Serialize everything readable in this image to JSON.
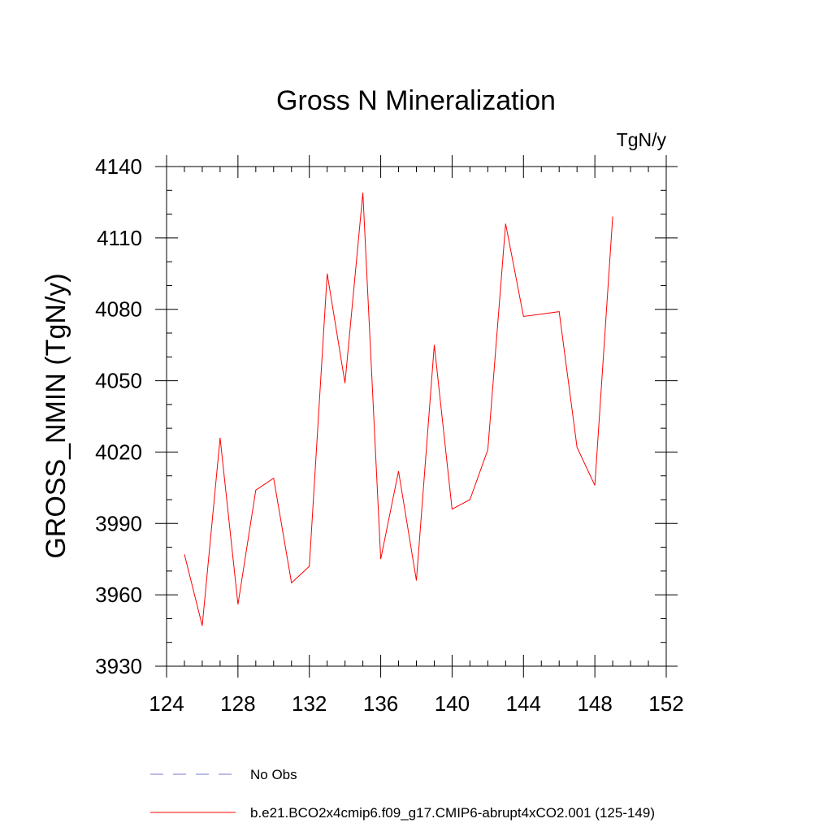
{
  "chart_data": {
    "type": "line",
    "title": "Gross N Mineralization",
    "units_label": "TgN/y",
    "xlabel": "",
    "ylabel": "GROSS_NMIN  (TgN/y)",
    "xlim": [
      124,
      152
    ],
    "ylim": [
      3930,
      4140
    ],
    "x_ticks": [
      124,
      128,
      132,
      136,
      140,
      144,
      148,
      152
    ],
    "y_ticks": [
      3930,
      3960,
      3990,
      4020,
      4050,
      4080,
      4110,
      4140
    ],
    "x_minor_step": 1,
    "y_minor_step": 10,
    "grid": false,
    "legend_position": "bottom",
    "series": [
      {
        "name": "b.e21.BCO2x4cmip6.f09_g17.CMIP6-abrupt4xCO2.001 (125-149)",
        "color": "#ff0000",
        "x": [
          125,
          126,
          127,
          128,
          129,
          130,
          131,
          132,
          133,
          134,
          135,
          136,
          137,
          138,
          139,
          140,
          141,
          142,
          143,
          144,
          145,
          146,
          147,
          148,
          149
        ],
        "values": [
          3977,
          3947,
          4026,
          3956,
          4004,
          4009,
          3965,
          3972,
          4095,
          4049,
          4129,
          3975,
          4012,
          3966,
          4065,
          3996,
          4000,
          4021,
          4116,
          4077,
          4078,
          4079,
          4022,
          4006,
          4119
        ]
      }
    ],
    "legend": [
      {
        "label": "No Obs",
        "color": "#7777cc",
        "style": "dashed"
      },
      {
        "label": "b.e21.BCO2x4cmip6.f09_g17.CMIP6-abrupt4xCO2.001 (125-149)",
        "color": "#ff0000",
        "style": "solid"
      }
    ]
  }
}
